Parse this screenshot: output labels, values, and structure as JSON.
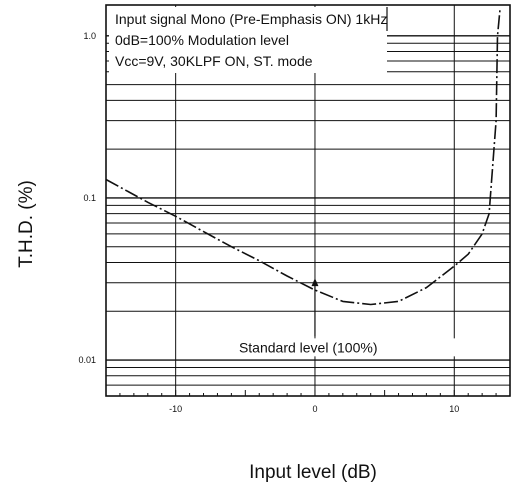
{
  "chart_data": {
    "type": "line",
    "title": "",
    "xlabel": "Input level (dB)",
    "ylabel": "T.H.D. (%)",
    "x_ticks": [
      -10,
      0,
      10
    ],
    "y_ticks": [
      0.01,
      0.1,
      1.0
    ],
    "y_tick_labels": [
      "0.01",
      "0.1",
      "1.0"
    ],
    "xlim": [
      -15,
      14
    ],
    "ylim": [
      0.006,
      1.55
    ],
    "y_scale": "log",
    "grid": true,
    "line_style": "dash-dot",
    "color": "#111111",
    "notes": [
      "Input signal Mono (Pre-Emphasis ON) 1kHz",
      "0dB=100% Modulation level",
      "Vcc=9V, 30KLPF ON, ST. mode"
    ],
    "annotation": {
      "text": "Standard level (100%)",
      "x": 0
    },
    "series": [
      {
        "x": [
          -15,
          -12,
          -10,
          -8,
          -6,
          -4,
          -2,
          0,
          2,
          4,
          6,
          8,
          10,
          11,
          12,
          12.5,
          13,
          13.1,
          13.3
        ],
        "y": [
          0.13,
          0.094,
          0.077,
          0.062,
          0.05,
          0.041,
          0.033,
          0.027,
          0.023,
          0.022,
          0.023,
          0.028,
          0.038,
          0.045,
          0.06,
          0.08,
          0.3,
          1.0,
          1.5
        ]
      }
    ]
  }
}
